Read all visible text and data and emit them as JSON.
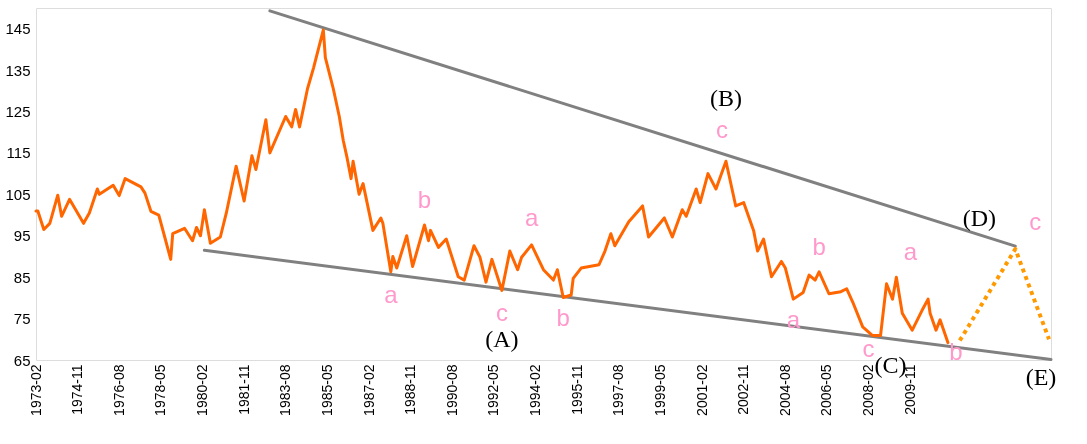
{
  "chart_data": {
    "type": "line",
    "xlim": [
      "1973-02",
      "2015-10"
    ],
    "ylim": [
      65,
      150
    ],
    "yticks": [
      65,
      75,
      85,
      95,
      105,
      115,
      125,
      135,
      145
    ],
    "xticks": [
      "1973-02",
      "1974-11",
      "1976-08",
      "1978-05",
      "1980-02",
      "1981-11",
      "1983-08",
      "1985-05",
      "1987-02",
      "1988-11",
      "1990-08",
      "1992-05",
      "1994-02",
      "1995-11",
      "1997-08",
      "1999-05",
      "2001-02",
      "2002-11",
      "2004-08",
      "2006-05",
      "2008-02",
      "2009-11"
    ],
    "grid": false,
    "legend": false,
    "series": [
      {
        "color": "#ff6600",
        "line_style": "solid",
        "x": [
          "1973-02",
          "1973-03",
          "1973-06",
          "1973-09",
          "1974-01",
          "1974-03",
          "1974-07",
          "1975-02",
          "1975-05",
          "1975-09",
          "1975-10",
          "1976-05",
          "1976-08",
          "1976-11",
          "1977-07",
          "1977-09",
          "1977-12",
          "1978-04",
          "1978-07",
          "1978-10",
          "1978-11",
          "1979-05",
          "1979-09",
          "1979-11",
          "1980-01",
          "1980-03",
          "1980-06",
          "1980-11",
          "1981-02",
          "1981-07",
          "1981-11",
          "1982-03",
          "1982-05",
          "1982-10",
          "1982-12",
          "1983-08",
          "1983-11",
          "1984-01",
          "1984-03",
          "1984-07",
          "1984-10",
          "1985-03",
          "1985-04",
          "1985-08",
          "1985-11",
          "1986-01",
          "1986-03",
          "1986-05",
          "1986-06",
          "1986-09",
          "1986-11",
          "1987-04",
          "1987-08",
          "1987-09",
          "1988-01",
          "1988-02",
          "1988-04",
          "1988-09",
          "1988-12",
          "1989-06",
          "1989-08",
          "1989-09",
          "1990-01",
          "1990-05",
          "1990-11",
          "1991-02",
          "1991-07",
          "1991-10",
          "1992-01",
          "1992-04",
          "1992-09",
          "1993-01",
          "1993-05",
          "1993-07",
          "1993-12",
          "1994-06",
          "1994-11",
          "1995-01",
          "1995-04",
          "1995-08",
          "1995-09",
          "1996-01",
          "1996-10",
          "1997-01",
          "1997-04",
          "1997-06",
          "1998-01",
          "1998-08",
          "1998-11",
          "1999-07",
          "1999-11",
          "2000-04",
          "2000-06",
          "2000-11",
          "2001-01",
          "2001-05",
          "2001-09",
          "2002-02",
          "2002-07",
          "2002-11",
          "2003-04",
          "2003-06",
          "2003-09",
          "2004-01",
          "2004-06",
          "2004-08",
          "2004-12",
          "2005-05",
          "2005-08",
          "2005-11",
          "2006-01",
          "2006-06",
          "2006-12",
          "2007-03",
          "2007-06",
          "2007-11",
          "2008-04",
          "2008-08",
          "2008-11",
          "2009-02",
          "2009-04",
          "2009-07",
          "2009-12",
          "2010-05",
          "2010-08",
          "2010-09",
          "2010-12",
          "2011-02",
          "2011-06"
        ],
        "values": [
          101,
          101,
          96.5,
          98,
          104.8,
          99.7,
          103.8,
          98,
          100.5,
          106.3,
          105,
          107.2,
          104.7,
          108.8,
          106.8,
          105.3,
          100.9,
          100,
          94.7,
          89.3,
          95.5,
          96.8,
          93.8,
          97,
          95,
          101.3,
          93.2,
          94.7,
          100.5,
          111.8,
          103.4,
          114.3,
          111,
          123,
          115,
          123.8,
          121.3,
          125.5,
          121.3,
          130.5,
          135.5,
          144.7,
          138,
          130.5,
          123.8,
          118,
          113.8,
          108.8,
          113,
          105,
          107.6,
          96.3,
          99.3,
          98,
          86.3,
          90,
          87.2,
          95,
          87.6,
          97.6,
          93.8,
          96.3,
          92.2,
          94.2,
          85.1,
          84.3,
          92.6,
          89.8,
          83.8,
          89.3,
          81.8,
          91.3,
          86.8,
          89.8,
          92.8,
          86.8,
          84.3,
          86.8,
          80.1,
          80.7,
          84.7,
          87.2,
          88,
          91.3,
          95.5,
          92.6,
          98.4,
          102.2,
          94.7,
          99.3,
          94.7,
          101.3,
          99.7,
          106.3,
          103,
          110,
          106.3,
          113,
          102.2,
          103,
          96.3,
          91.3,
          94.2,
          85.1,
          88.8,
          87.2,
          79.7,
          81.3,
          85.5,
          84.3,
          86.3,
          81,
          81.5,
          82.2,
          79,
          73,
          70.9,
          70.9,
          83.4,
          79.7,
          85,
          76.3,
          72.2,
          77,
          79.7,
          76.3,
          72.2,
          74.7,
          69.2
        ]
      },
      {
        "color": "#ff9900",
        "line_style": "dotted",
        "x": [
          "2011-12",
          "2014-04",
          "2015-09"
        ],
        "values": [
          69.7,
          91.8,
          70
        ]
      },
      {
        "color": "#808080",
        "line_style": "solid",
        "x": [
          "1982-12",
          "2014-04"
        ],
        "values": [
          149.3,
          92.5
        ]
      },
      {
        "color": "#808080",
        "line_style": "solid",
        "x": [
          "1980-03",
          "2015-10"
        ],
        "values": [
          91.5,
          65.1
        ]
      }
    ],
    "annotations": [
      {
        "text": "a",
        "x": "1988-01",
        "y": 86.3
      },
      {
        "text": "b",
        "x": "1989-06",
        "y": 97.6
      },
      {
        "text": "c",
        "x": "1992-09",
        "y": 81.8
      },
      {
        "text": "(A)",
        "x": "1992-09",
        "y": 81.8
      },
      {
        "text": "a",
        "x": "1993-12",
        "y": 92.8
      },
      {
        "text": "b",
        "x": "1995-04",
        "y": 80.1
      },
      {
        "text": "c",
        "x": "2002-02",
        "y": 113
      },
      {
        "text": "(B)",
        "x": "2002-02",
        "y": 113
      },
      {
        "text": "a",
        "x": "2004-12",
        "y": 79.7
      },
      {
        "text": "b",
        "x": "2006-01",
        "y": 86.3
      },
      {
        "text": "c",
        "x": "2008-04",
        "y": 70.9
      },
      {
        "text": "a",
        "x": "2009-04",
        "y": 85
      },
      {
        "text": "(C)",
        "x": "2008-08",
        "y": 70.9
      },
      {
        "text": "b",
        "x": "2011-06",
        "y": 69.2
      },
      {
        "text": "(D)",
        "x": "2014-04",
        "y": 91.8
      },
      {
        "text": "c",
        "x": "2014-04",
        "y": 91.8
      },
      {
        "text": "(E)",
        "x": "2015-10",
        "y": 65.1
      }
    ]
  }
}
